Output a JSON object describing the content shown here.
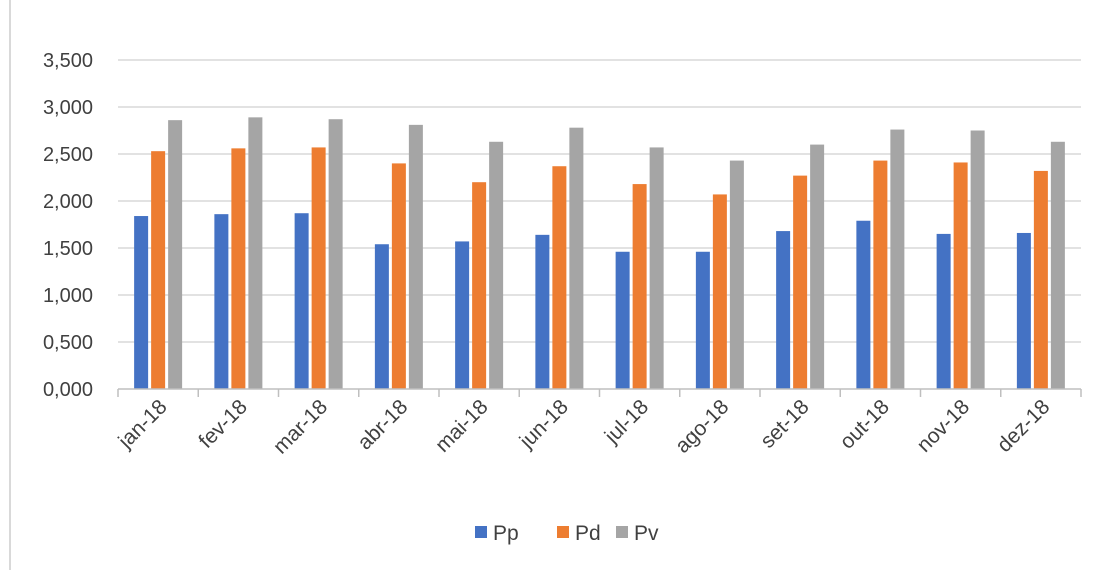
{
  "chart_data": {
    "type": "bar",
    "categories": [
      "jan-18",
      "fev-18",
      "mar-18",
      "abr-18",
      "mai-18",
      "jun-18",
      "jul-18",
      "ago-18",
      "set-18",
      "out-18",
      "nov-18",
      "dez-18"
    ],
    "series": [
      {
        "name": "Pp",
        "color": "#4472c4",
        "values": [
          1.84,
          1.86,
          1.87,
          1.54,
          1.57,
          1.64,
          1.46,
          1.46,
          1.68,
          1.79,
          1.65,
          1.66
        ]
      },
      {
        "name": "Pd",
        "color": "#ed7d31",
        "values": [
          2.53,
          2.56,
          2.57,
          2.4,
          2.2,
          2.37,
          2.18,
          2.07,
          2.27,
          2.43,
          2.41,
          2.32
        ]
      },
      {
        "name": "Pv",
        "color": "#a5a5a5",
        "values": [
          2.86,
          2.89,
          2.87,
          2.81,
          2.63,
          2.78,
          2.57,
          2.43,
          2.6,
          2.76,
          2.75,
          2.63
        ]
      }
    ],
    "yticks": [
      "0,000",
      "0,500",
      "1,000",
      "1,500",
      "2,000",
      "2,500",
      "3,000",
      "3,500"
    ],
    "ylim": [
      0,
      3.5
    ],
    "grid": true,
    "legend": "bottom",
    "gridColor": "#d9d9d9",
    "axisColor": "#bfbfbf"
  }
}
